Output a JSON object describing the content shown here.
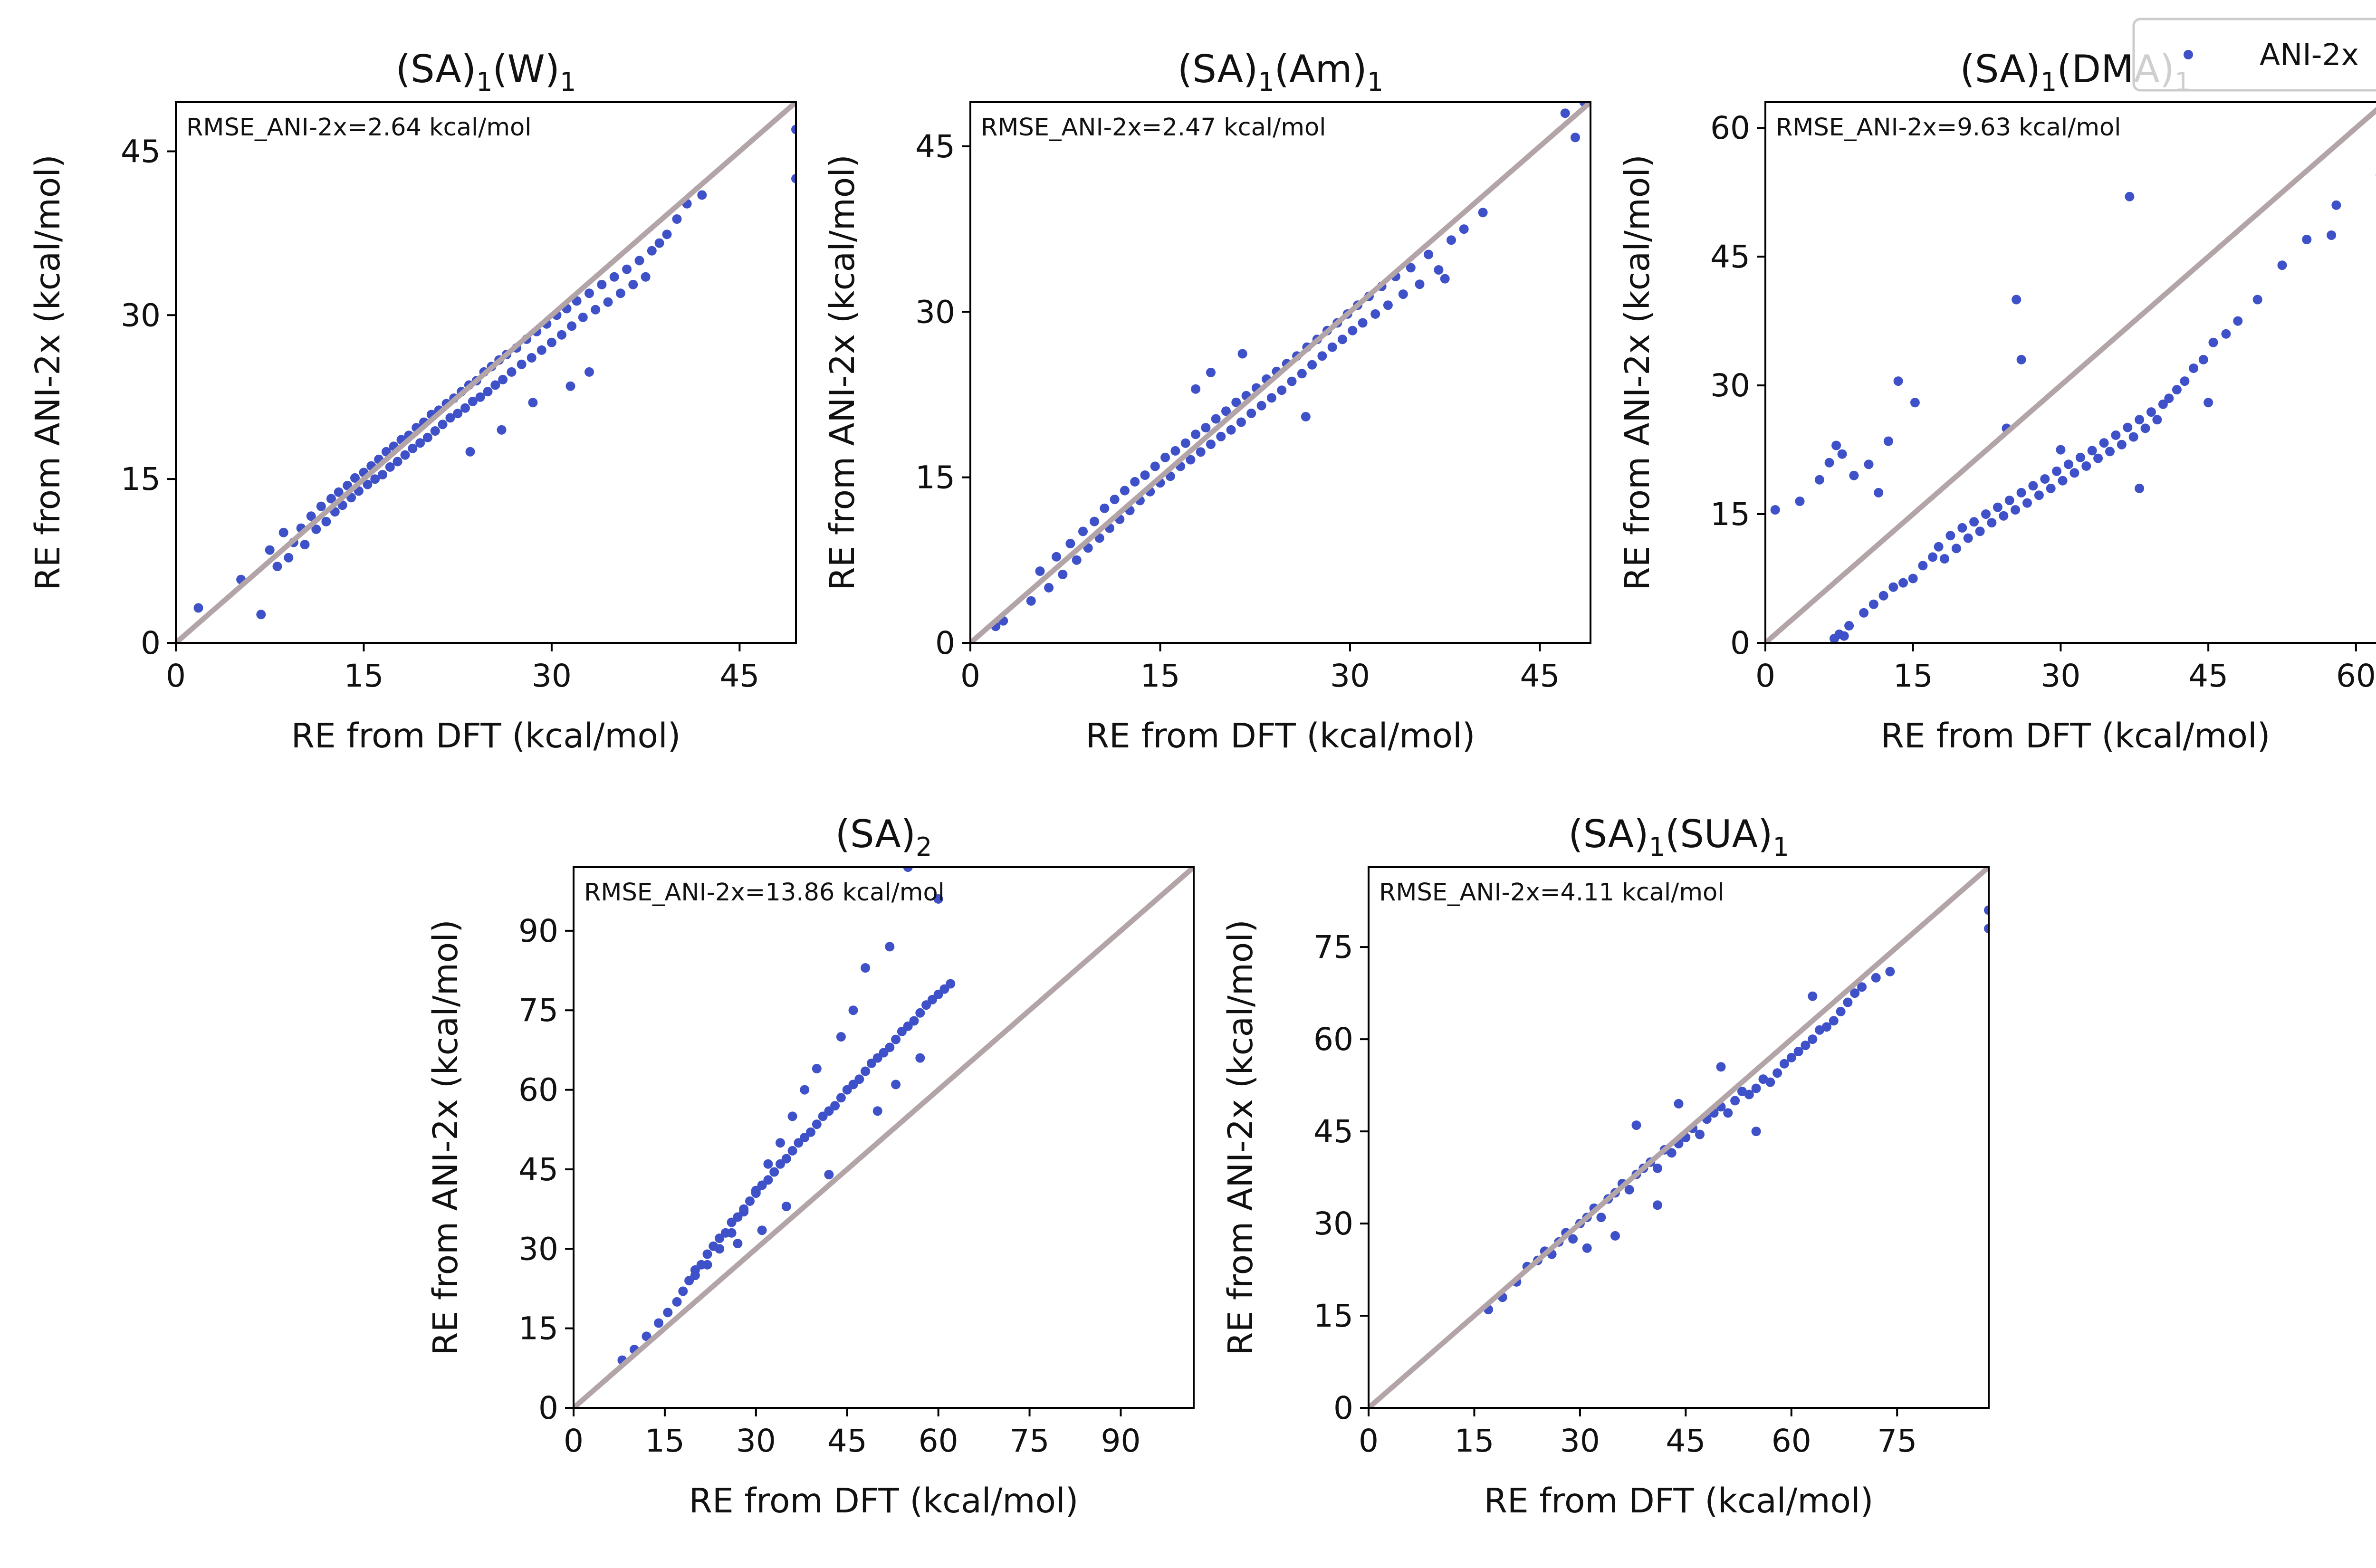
{
  "figure": {
    "legend": {
      "label": "ANI-2x",
      "marker_color": "#3f51c8",
      "placement": "top-right"
    },
    "colors": {
      "points": "#3f51c8",
      "identity_line": "#b3a5a7",
      "axes": "#000000"
    }
  },
  "chart_data": [
    {
      "type": "scatter",
      "title": "(SA)1(W)1",
      "title_parts": {
        "a": "(SA)",
        "a_sub": "1",
        "b": "(W)",
        "b_sub": "1"
      },
      "xlabel": "RE from DFT (kcal/mol)",
      "ylabel": "RE from ANI-2x (kcal/mol)",
      "annotation": "RMSE_ANI-2x=2.64 kcal/mol",
      "xlim": [
        0,
        49.5
      ],
      "ylim": [
        0,
        49.5
      ],
      "xticks": [
        0,
        15,
        30,
        45
      ],
      "yticks": [
        0,
        15,
        30,
        45
      ],
      "identity_line": true,
      "grid": false,
      "series": [
        {
          "name": "ANI-2x",
          "color": "#3f51c8",
          "x": [
            1.8,
            5.2,
            6.8,
            7.5,
            8.1,
            8.6,
            9.0,
            9.4,
            10.0,
            10.3,
            10.8,
            11.2,
            11.6,
            12.0,
            12.4,
            12.7,
            13.0,
            13.3,
            13.7,
            14.0,
            14.3,
            14.6,
            15.0,
            15.3,
            15.6,
            15.9,
            16.2,
            16.5,
            16.8,
            17.1,
            17.4,
            17.7,
            18.0,
            18.3,
            18.6,
            18.9,
            19.2,
            19.5,
            19.8,
            20.1,
            20.4,
            20.7,
            21.0,
            21.3,
            21.6,
            21.9,
            22.2,
            22.5,
            22.8,
            23.1,
            23.4,
            23.7,
            24.0,
            24.3,
            24.6,
            24.9,
            25.2,
            25.5,
            25.8,
            26.1,
            26.4,
            26.8,
            27.2,
            27.6,
            28.0,
            28.4,
            28.8,
            29.2,
            29.6,
            30.0,
            30.4,
            30.8,
            31.2,
            31.6,
            32.0,
            32.5,
            33.0,
            33.5,
            34.0,
            34.5,
            35.0,
            35.5,
            36.0,
            36.5,
            37.0,
            37.5,
            38.0,
            38.6,
            39.2,
            40.0,
            40.8,
            42.0,
            49.5,
            49.5,
            28.5,
            31.5,
            26.0,
            23.5,
            33.0
          ],
          "y": [
            3.2,
            5.8,
            2.6,
            8.5,
            7.0,
            10.1,
            7.8,
            9.2,
            10.5,
            9.0,
            11.6,
            10.4,
            12.5,
            11.1,
            13.2,
            12.0,
            13.8,
            12.6,
            14.4,
            13.3,
            15.1,
            13.9,
            15.6,
            14.5,
            16.2,
            15.0,
            16.8,
            15.4,
            17.5,
            16.1,
            18.0,
            16.6,
            18.6,
            17.2,
            19.0,
            17.8,
            19.7,
            18.3,
            20.2,
            18.8,
            20.9,
            19.4,
            21.3,
            20.0,
            21.9,
            20.6,
            22.4,
            21.0,
            23.0,
            21.5,
            23.6,
            22.1,
            24.0,
            22.5,
            24.8,
            23.0,
            25.3,
            23.6,
            25.9,
            24.1,
            26.4,
            24.8,
            27.0,
            25.5,
            27.8,
            26.1,
            28.5,
            26.8,
            29.2,
            27.5,
            30.0,
            28.2,
            30.6,
            29.0,
            31.3,
            29.8,
            32.0,
            30.5,
            32.8,
            31.2,
            33.5,
            32.0,
            34.2,
            32.8,
            35.0,
            33.5,
            35.9,
            36.6,
            37.4,
            38.8,
            40.2,
            41.0,
            47.0,
            42.5,
            22.0,
            23.5,
            19.5,
            17.5,
            24.8
          ]
        }
      ]
    },
    {
      "type": "scatter",
      "title": "(SA)1(Am)1",
      "title_parts": {
        "a": "(SA)",
        "a_sub": "1",
        "b": "(Am)",
        "b_sub": "1"
      },
      "xlabel": "RE from DFT (kcal/mol)",
      "ylabel": "RE from ANI-2x (kcal/mol)",
      "annotation": "RMSE_ANI-2x=2.47 kcal/mol",
      "xlim": [
        0,
        49
      ],
      "ylim": [
        0,
        49
      ],
      "xticks": [
        0,
        15,
        30,
        45
      ],
      "yticks": [
        0,
        15,
        30,
        45
      ],
      "identity_line": true,
      "grid": false,
      "series": [
        {
          "name": "ANI-2x",
          "color": "#3f51c8",
          "x": [
            2.0,
            2.6,
            4.8,
            5.5,
            6.2,
            6.8,
            7.3,
            7.9,
            8.4,
            8.9,
            9.3,
            9.8,
            10.2,
            10.6,
            11.0,
            11.4,
            11.8,
            12.2,
            12.6,
            13.0,
            13.4,
            13.8,
            14.2,
            14.6,
            15.0,
            15.4,
            15.8,
            16.2,
            16.6,
            17.0,
            17.4,
            17.8,
            18.2,
            18.6,
            19.0,
            19.4,
            19.8,
            20.2,
            20.6,
            21.0,
            21.4,
            21.8,
            22.2,
            22.6,
            23.0,
            23.4,
            23.8,
            24.2,
            24.6,
            25.0,
            25.4,
            25.8,
            26.2,
            26.6,
            27.0,
            27.4,
            27.8,
            28.2,
            28.6,
            29.0,
            29.4,
            29.8,
            30.2,
            30.6,
            31.0,
            31.5,
            32.0,
            32.5,
            33.0,
            33.6,
            34.2,
            34.8,
            35.5,
            36.2,
            37.0,
            38.0,
            39.0,
            40.5,
            47.0,
            47.8,
            48.5,
            17.8,
            21.5,
            26.5,
            19.0,
            37.5
          ],
          "y": [
            1.5,
            2.0,
            3.8,
            6.5,
            5.0,
            7.8,
            6.2,
            9.0,
            7.5,
            10.1,
            8.6,
            11.0,
            9.5,
            12.2,
            10.4,
            13.0,
            11.2,
            13.8,
            12.0,
            14.6,
            12.9,
            15.2,
            13.7,
            16.0,
            14.5,
            16.8,
            15.1,
            17.4,
            16.0,
            18.1,
            16.6,
            18.9,
            17.3,
            19.5,
            18.0,
            20.3,
            18.7,
            21.0,
            19.3,
            21.8,
            20.0,
            22.4,
            20.8,
            23.1,
            21.5,
            23.9,
            22.2,
            24.6,
            22.9,
            25.3,
            23.7,
            26.0,
            24.4,
            26.8,
            25.2,
            27.5,
            26.0,
            28.3,
            26.8,
            29.0,
            27.5,
            29.8,
            28.3,
            30.6,
            29.0,
            31.4,
            29.8,
            32.3,
            30.6,
            33.2,
            31.6,
            34.0,
            32.5,
            35.2,
            33.8,
            36.5,
            37.5,
            39.0,
            48.0,
            45.8,
            49.0,
            23.0,
            26.2,
            20.5,
            24.5,
            33.0
          ]
        }
      ]
    },
    {
      "type": "scatter",
      "title": "(SA)1(DMA)1",
      "title_parts": {
        "a": "(SA)",
        "a_sub": "1",
        "b": "(DMA)",
        "b_sub": "1"
      },
      "xlabel": "RE from DFT (kcal/mol)",
      "ylabel": "RE from ANI-2x (kcal/mol)",
      "annotation": "RMSE_ANI-2x=9.63 kcal/mol",
      "xlim": [
        0,
        63
      ],
      "ylim": [
        0,
        63
      ],
      "xticks": [
        0,
        15,
        30,
        45,
        60
      ],
      "yticks": [
        0,
        15,
        30,
        45,
        60
      ],
      "identity_line": true,
      "grid": false,
      "series": [
        {
          "name": "ANI-2x",
          "color": "#3f51c8",
          "x": [
            1.0,
            3.5,
            5.5,
            6.5,
            7.2,
            7.8,
            9.0,
            10.5,
            11.5,
            12.5,
            13.5,
            15.2,
            25.5,
            24.5,
            7.0,
            7.5,
            8.0,
            8.5,
            10.0,
            11.0,
            12.0,
            13.0,
            14.0,
            15.0,
            16.0,
            17.0,
            17.6,
            18.2,
            18.8,
            19.4,
            20.0,
            20.6,
            21.2,
            21.8,
            22.4,
            23.0,
            23.6,
            24.2,
            24.8,
            25.4,
            26.0,
            26.6,
            27.2,
            27.8,
            28.4,
            29.0,
            29.6,
            30.2,
            30.8,
            31.4,
            32.0,
            32.6,
            33.2,
            33.8,
            34.4,
            35.0,
            35.6,
            36.2,
            36.8,
            37.4,
            38.0,
            38.6,
            39.2,
            39.8,
            40.4,
            41.0,
            41.8,
            42.6,
            43.5,
            44.5,
            45.5,
            46.8,
            48.0,
            50.0,
            52.5,
            55.0,
            57.5,
            58.0,
            62.5,
            37.0,
            26.0,
            38.0,
            30.0,
            45.0
          ],
          "y": [
            15.5,
            16.5,
            19.0,
            21.0,
            23.0,
            22.0,
            19.5,
            20.8,
            17.5,
            23.5,
            30.5,
            28.0,
            40.0,
            25.0,
            0.5,
            1.0,
            0.8,
            2.0,
            3.5,
            4.5,
            5.5,
            6.5,
            7.0,
            7.5,
            9.0,
            10.0,
            11.2,
            9.8,
            12.5,
            11.0,
            13.4,
            12.2,
            14.1,
            13.0,
            15.0,
            14.0,
            15.8,
            14.8,
            16.6,
            15.5,
            17.5,
            16.3,
            18.3,
            17.2,
            19.1,
            18.0,
            20.0,
            18.9,
            20.8,
            19.8,
            21.6,
            20.6,
            22.4,
            21.5,
            23.3,
            22.3,
            24.2,
            23.1,
            25.1,
            24.0,
            26.0,
            25.0,
            26.9,
            26.0,
            27.8,
            28.5,
            29.5,
            30.5,
            32.0,
            33.0,
            35.0,
            36.0,
            37.5,
            40.0,
            44.0,
            47.0,
            47.5,
            51.0,
            54.5,
            52.0,
            33.0,
            18.0,
            22.5,
            28.0
          ]
        }
      ]
    },
    {
      "type": "scatter",
      "title": "(SA)2",
      "title_parts": {
        "a": "(SA)",
        "a_sub": "2",
        "b": "",
        "b_sub": ""
      },
      "xlabel": "RE from DFT (kcal/mol)",
      "ylabel": "RE from ANI-2x (kcal/mol)",
      "annotation": "RMSE_ANI-2x=13.86 kcal/mol",
      "xlim": [
        0,
        102
      ],
      "ylim": [
        0,
        102
      ],
      "xticks": [
        0,
        15,
        30,
        45,
        60,
        75,
        90
      ],
      "yticks": [
        0,
        15,
        30,
        45,
        60,
        75,
        90
      ],
      "identity_line": true,
      "grid": false,
      "series": [
        {
          "name": "ANI-2x",
          "color": "#3f51c8",
          "x": [
            8.0,
            10.0,
            12.0,
            14.0,
            15.5,
            17.0,
            18.0,
            19.0,
            20.0,
            21.0,
            22.0,
            23.0,
            24.0,
            25.0,
            26.0,
            27.0,
            28.0,
            29.0,
            30.0,
            31.0,
            32.0,
            33.0,
            34.0,
            35.0,
            36.0,
            37.0,
            38.0,
            39.0,
            40.0,
            41.0,
            42.0,
            43.0,
            44.0,
            45.0,
            46.0,
            47.0,
            48.0,
            49.0,
            50.0,
            51.0,
            52.0,
            53.0,
            54.0,
            55.0,
            56.0,
            57.0,
            58.0,
            59.0,
            60.0,
            61.0,
            62.0,
            55.0,
            60.0,
            52.0,
            48.0,
            46.0,
            44.0,
            40.0,
            38.0,
            36.0,
            34.0,
            32.0,
            30.0,
            28.0,
            26.0,
            24.0,
            22.0,
            20.0,
            50.0,
            53.0,
            57.0,
            42.0,
            35.0,
            31.0,
            27.0
          ],
          "y": [
            9.0,
            11.0,
            13.5,
            16.0,
            18.0,
            20.0,
            22.0,
            24.0,
            26.0,
            27.0,
            29.0,
            30.5,
            32.0,
            33.0,
            35.0,
            36.0,
            37.5,
            39.0,
            40.5,
            42.0,
            43.0,
            44.5,
            46.0,
            47.0,
            48.5,
            50.0,
            51.0,
            52.0,
            53.5,
            55.0,
            56.0,
            57.0,
            58.5,
            60.0,
            61.0,
            62.0,
            63.5,
            65.0,
            66.0,
            67.0,
            68.0,
            69.5,
            71.0,
            72.0,
            73.0,
            74.5,
            76.0,
            77.0,
            78.0,
            79.0,
            80.0,
            102.0,
            96.0,
            87.0,
            83.0,
            75.0,
            70.0,
            64.0,
            60.0,
            55.0,
            50.0,
            46.0,
            41.0,
            37.0,
            33.0,
            30.0,
            27.0,
            25.0,
            56.0,
            61.0,
            66.0,
            44.0,
            38.0,
            33.5,
            31.0
          ]
        }
      ]
    },
    {
      "type": "scatter",
      "title": "(SA)1(SUA)1",
      "title_parts": {
        "a": "(SA)",
        "a_sub": "1",
        "b": "(SUA)",
        "b_sub": "1"
      },
      "xlabel": "RE from DFT (kcal/mol)",
      "ylabel": "RE from ANI-2x (kcal/mol)",
      "annotation": "RMSE_ANI-2x=4.11 kcal/mol",
      "xlim": [
        0,
        88
      ],
      "ylim": [
        0,
        88
      ],
      "xticks": [
        0,
        15,
        30,
        45,
        60,
        75
      ],
      "yticks": [
        0,
        15,
        30,
        45,
        60,
        75
      ],
      "identity_line": true,
      "grid": false,
      "series": [
        {
          "name": "ANI-2x",
          "color": "#3f51c8",
          "x": [
            17.0,
            19.0,
            21.0,
            22.5,
            24.0,
            25.0,
            26.0,
            27.0,
            28.0,
            29.0,
            30.0,
            31.0,
            32.0,
            33.0,
            34.0,
            35.0,
            36.0,
            37.0,
            38.0,
            39.0,
            40.0,
            41.0,
            42.0,
            43.0,
            44.0,
            45.0,
            46.0,
            47.0,
            48.0,
            49.0,
            50.0,
            51.0,
            52.0,
            53.0,
            54.0,
            55.0,
            56.0,
            57.0,
            58.0,
            59.0,
            60.0,
            61.0,
            62.0,
            63.0,
            64.0,
            65.0,
            66.0,
            67.0,
            68.0,
            69.0,
            70.0,
            72.0,
            74.0,
            88.0,
            88.0,
            38.0,
            44.0,
            50.0,
            55.0,
            35.0,
            31.0,
            41.0,
            63.0
          ],
          "y": [
            16.0,
            18.0,
            20.5,
            23.0,
            24.0,
            25.5,
            25.0,
            27.0,
            28.5,
            27.5,
            30.0,
            31.0,
            32.5,
            31.0,
            34.0,
            35.0,
            36.5,
            35.5,
            38.0,
            39.0,
            40.0,
            39.0,
            42.0,
            41.5,
            43.0,
            44.0,
            45.5,
            44.5,
            47.0,
            48.0,
            49.0,
            48.0,
            50.0,
            51.5,
            51.0,
            52.0,
            53.5,
            53.0,
            54.5,
            56.0,
            57.0,
            58.0,
            59.0,
            60.0,
            61.5,
            62.0,
            63.0,
            64.5,
            66.0,
            67.5,
            68.5,
            70.0,
            71.0,
            81.0,
            78.0,
            46.0,
            49.5,
            55.5,
            45.0,
            28.0,
            26.0,
            33.0,
            67.0
          ]
        }
      ]
    }
  ]
}
